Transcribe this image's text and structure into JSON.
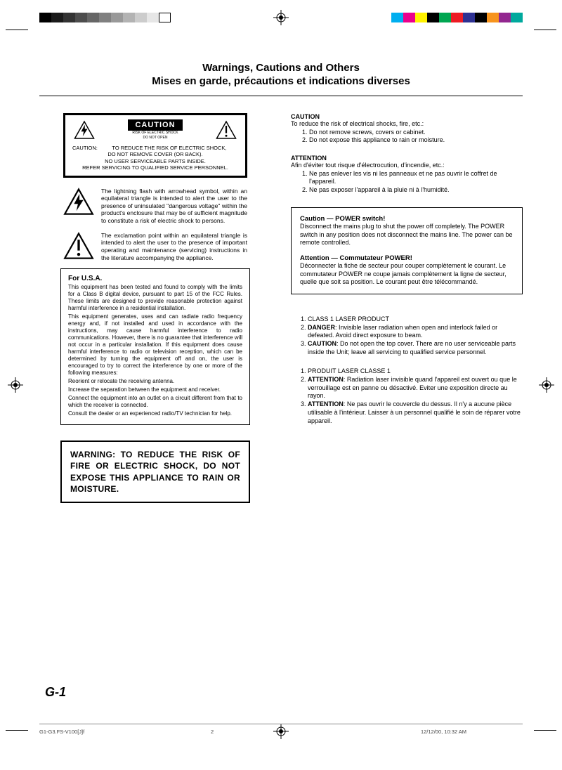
{
  "colorbar_left": [
    "#000000",
    "#1a1a1a",
    "#333333",
    "#4d4d4d",
    "#666666",
    "#808080",
    "#999999",
    "#b3b3b3",
    "#cccccc",
    "#e6e6e6",
    "#ffffff"
  ],
  "colorbar_right": [
    "#00aeef",
    "#ec008c",
    "#fff200",
    "#000000",
    "#00a651",
    "#ed1c24",
    "#2e3192",
    "#000000",
    "#f7941d",
    "#92278f",
    "#00a99d"
  ],
  "title_en": "Warnings, Cautions and Others",
  "title_fr": "Mises en garde, précautions et indications diverses",
  "caution_label": "CAUTION",
  "caution_sub1": "RISK OF ELECTRIC SHOCK",
  "caution_sub2": "DO NOT OPEN",
  "caution_body_label": "CAUTION:",
  "caution_body": "TO REDUCE THE RISK OF ELECTRIC SHOCK,\nDO NOT REMOVE COVER (OR BACK).\nNO USER SERVICEABLE PARTS INSIDE.\nREFER SERVICING TO QUALIFIED SERVICE PERSONNEL.",
  "lightning_text": "The lightning flash with arrowhead symbol, within an equilateral triangle is intended to alert the user to the presence of uninsulated \"dangerous voltage\" within the product's enclosure that may be of sufficient magnitude to constitute a risk of electric shock to persons.",
  "exclaim_text": "The exclamation point within an equilateral triangle is intended to alert the user to the presence of important operating and maintenance (servicing) instructions in the literature accompanying the appliance.",
  "usa_hd": "For U.S.A.",
  "usa_p1": "This equipment has been tested and found to comply with the limits for a Class B digital device, pursuant to part 15 of the FCC Rules. These limits are designed to provide reasonable protection against harmful interference in a residential installation.",
  "usa_p2": "This equipment generates, uses and can radiate radio frequency energy and, if not installed and used in accordance with the instructions, may cause harmful interference to radio communications. However, there is no guarantee that interference will not occur in a particular installation. If this equipment does cause harmful interference to radio or television reception, which can be determined by turning the equipment off and on, the user is encouraged to try to correct the interference by one or more of the following measures:",
  "usa_l1": "Reorient or relocate the receiving antenna.",
  "usa_l2": "Increase the separation between the equipment and receiver.",
  "usa_l3": "Connect the equipment into an outlet on a circuit different from that to which the receiver is connected.",
  "usa_l4": "Consult the dealer or an experienced radio/TV technician for help.",
  "warn_text": "WARNING: TO REDUCE THE RISK OF FIRE OR ELECTRIC SHOCK, DO NOT EXPOSE THIS APPLIANCE TO RAIN OR MOISTURE.",
  "r_caution_hd": "CAUTION",
  "r_caution_intro": "To reduce the risk of electrical shocks, fire, etc.:",
  "r_caution_1": "Do not remove screws, covers or cabinet.",
  "r_caution_2": "Do not expose this appliance to rain or moisture.",
  "r_attention_hd": "ATTENTION",
  "r_attention_intro": "Afin d'éviter tout risque d'électrocution, d'incendie, etc.:",
  "r_attention_1": "Ne pas enlever les vis ni les panneaux et ne pas ouvrir le coffret de l'appareil.",
  "r_attention_2": "Ne pas exposer l'appareil à la pluie ni à l'humidité.",
  "power_en_hd": "Caution — POWER switch!",
  "power_en_txt": "Disconnect the mains plug to shut the power off completely. The POWER switch in any position does not disconnect the mains line. The power can be remote controlled.",
  "power_fr_hd": "Attention — Commutateur POWER!",
  "power_fr_txt": "Déconnecter la fiche de secteur pour couper complètement le courant. Le commutateur POWER ne coupe jamais complètement la ligne de secteur, quelle que soit sa position. Le courant peut être télécommandé.",
  "laser_en_1": "CLASS 1 LASER PRODUCT",
  "laser_en_2a": "DANGER",
  "laser_en_2b": ": Invisible laser radiation when open and interlock failed or defeated. Avoid direct exposure to beam.",
  "laser_en_3a": "CAUTION",
  "laser_en_3b": ": Do not open the top cover. There are no user serviceable parts inside the Unit; leave all servicing to qualified service personnel.",
  "laser_fr_1": "PRODUIT LASER CLASSE 1",
  "laser_fr_2a": "ATTENTION",
  "laser_fr_2b": ": Radiation laser invisible quand l'appareil est ouvert ou que le verrouillage est en panne ou désactivé. Eviter une exposition directe au rayon.",
  "laser_fr_3a": "ATTENTION",
  "laser_fr_3b": ": Ne pas ouvrir le couvercle du dessus. Il n'y a aucune pièce utilisable à l'intérieur. Laisser à un personnel qualifié le soin de réparer votre appareil.",
  "page_num": "G-1",
  "footer_file": "G1-G3.FS-V100[J]f",
  "footer_page": "2",
  "footer_date": "12/12/00, 10:32 AM"
}
